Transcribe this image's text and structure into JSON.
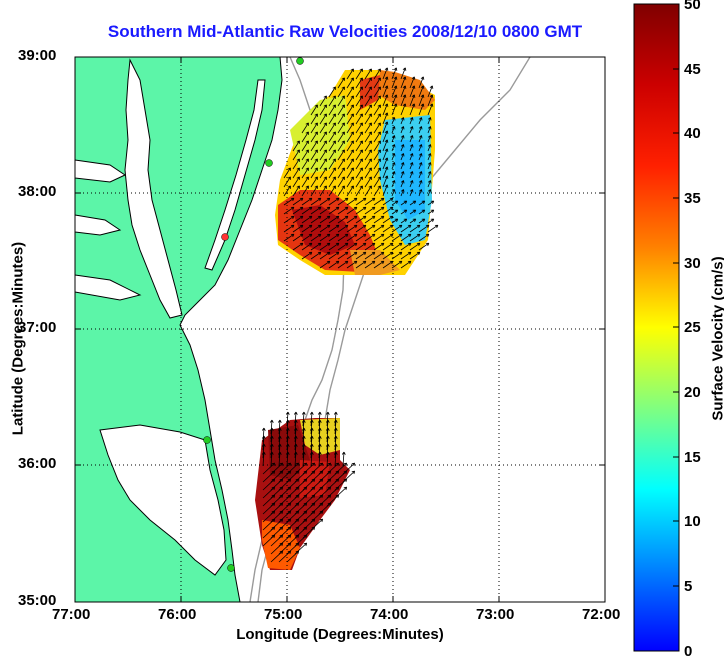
{
  "title": "Southern Mid-Atlantic Raw Velocities 2008/12/10 0800 GMT",
  "xlabel": "Longitude (Degrees:Minutes)",
  "ylabel": "Latitude (Degrees:Minutes)",
  "colorbar": {
    "label": "Surface Velocity (cm/s)",
    "ticks": [
      "0",
      "5",
      "10",
      "15",
      "20",
      "25",
      "30",
      "35",
      "40",
      "45",
      "50"
    ],
    "range": [
      0,
      50
    ]
  },
  "axes": {
    "x_ticks": [
      "77:00",
      "76:00",
      "75:00",
      "74:00",
      "73:00",
      "72:00"
    ],
    "y_ticks": [
      "39:00",
      "38:00",
      "37:00",
      "36:00",
      "35:00"
    ],
    "lon_range": [
      -77,
      -72
    ],
    "lat_range": [
      35,
      39
    ],
    "grid": true
  },
  "colors": {
    "land": "#5cf5a8",
    "coast": "#000000",
    "isobath": "#9a9a9a",
    "title": "#1a1aff",
    "station": "#22cc22"
  }
}
